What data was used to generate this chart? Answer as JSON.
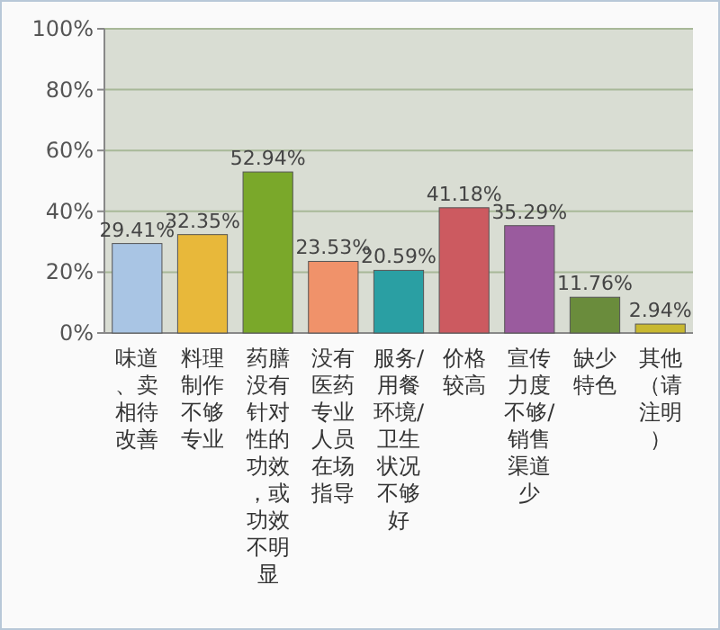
{
  "chart_data": {
    "type": "bar",
    "categories": [
      "味道、卖相待改善",
      "料理制作不够专业",
      "药膳没有针对性的功效，或功效不明显",
      "没有医药专业人员在场指导",
      "服务/用餐环境/卫生状况不够好",
      "价格较高",
      "宣传力度不够/销售渠道少",
      "缺少特色",
      "其他（请注明）"
    ],
    "values": [
      29.41,
      32.35,
      52.94,
      23.53,
      20.59,
      41.18,
      35.29,
      11.76,
      2.94
    ],
    "colors": [
      "#a9c5e4",
      "#e8b83a",
      "#7aa82a",
      "#f0926a",
      "#2a9fa3",
      "#cc5a60",
      "#9a5b9e",
      "#6a8c3c",
      "#c8b830"
    ],
    "value_labels": [
      "29.41%",
      "32.35%",
      "52.94%",
      "23.53%",
      "20.59%",
      "41.18%",
      "35.29%",
      "11.76%",
      "2.94%"
    ],
    "ylim": [
      0,
      100
    ],
    "yticks": [
      {
        "value": 0,
        "label": "0%"
      },
      {
        "value": 20,
        "label": "20%"
      },
      {
        "value": 40,
        "label": "40%"
      },
      {
        "value": 60,
        "label": "60%"
      },
      {
        "value": 80,
        "label": "80%"
      },
      {
        "value": 100,
        "label": "100%"
      }
    ],
    "grid": "y"
  }
}
